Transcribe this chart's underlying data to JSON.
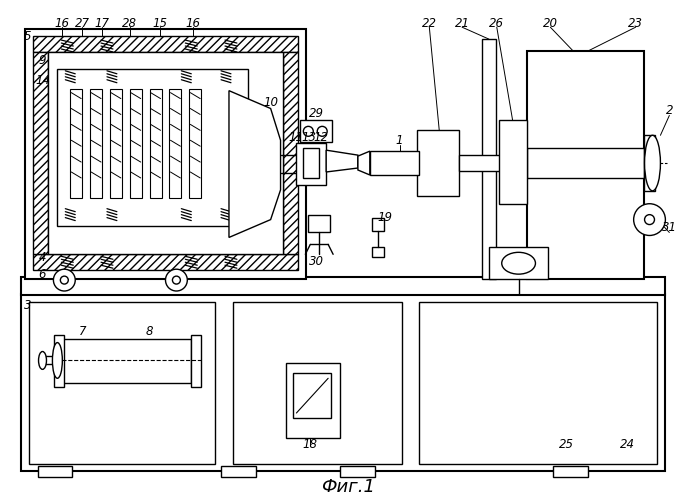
{
  "title": "Фиг.1",
  "bg_color": "#ffffff",
  "lc": "#000000",
  "lw": 1.0,
  "lw2": 1.5,
  "fs": 8.5,
  "fig_width": 6.95,
  "fig_height": 5.0,
  "dpi": 100
}
